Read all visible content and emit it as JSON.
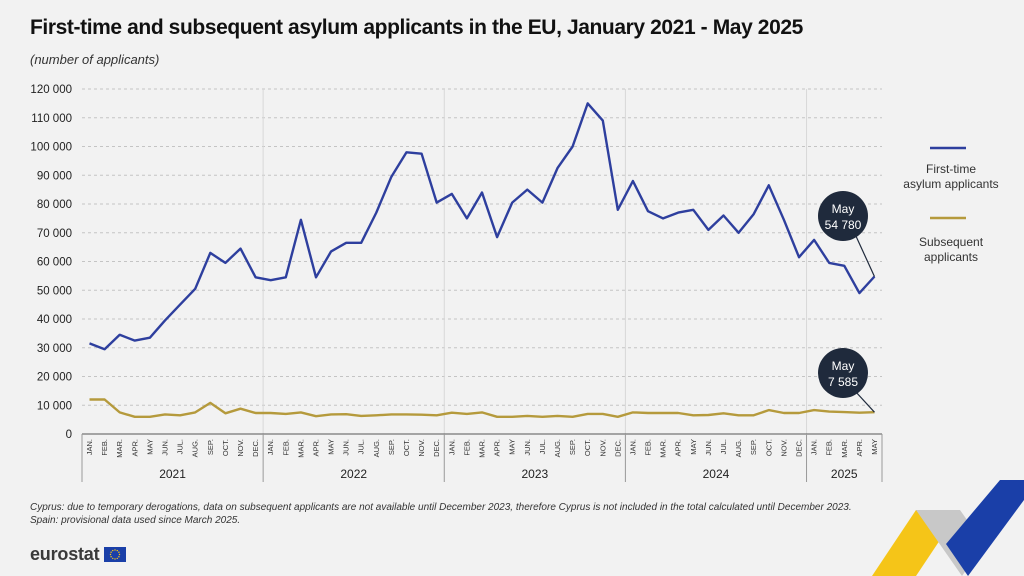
{
  "header": {
    "title": "First-time and subsequent asylum applicants in the EU, January 2021 - May 2025",
    "subtitle": "(number of applicants)"
  },
  "footnotes": [
    "Cyprus: due to temporary derogations, data on subsequent applicants are not available until December 2023, therefore Cyprus is not included in the total calculated until December 2023.",
    "Spain: provisional data used since March 2025."
  ],
  "brand": {
    "name": "eurostat"
  },
  "colors": {
    "first_time": "#2e3f9e",
    "subsequent": "#b59a3c",
    "callout": "#1f2a3c",
    "deco_yellow": "#f5c518",
    "deco_blue": "#1a3fa8",
    "deco_gray": "#c8c8c8"
  },
  "chart_data": {
    "type": "line",
    "title": "First-time and subsequent asylum applicants in the EU, January 2021 - May 2025",
    "ylabel": "(number of applicants)",
    "ylim": [
      0,
      120000
    ],
    "yticks": [
      0,
      10000,
      20000,
      30000,
      40000,
      50000,
      60000,
      70000,
      80000,
      90000,
      100000,
      110000,
      120000
    ],
    "ytick_labels": [
      "0",
      "10 000",
      "20 000",
      "30 000",
      "40 000",
      "50 000",
      "60 000",
      "70 000",
      "80 000",
      "90 000",
      "100 000",
      "110 000",
      "120 000"
    ],
    "month_labels": [
      "JAN.",
      "FEB.",
      "MAR.",
      "APR.",
      "MAY",
      "JUN.",
      "JUL.",
      "AUG.",
      "SEP.",
      "OCT.",
      "NOV.",
      "DEC."
    ],
    "years": [
      {
        "label": "2021",
        "months": 12
      },
      {
        "label": "2022",
        "months": 12
      },
      {
        "label": "2023",
        "months": 12
      },
      {
        "label": "2024",
        "months": 12
      },
      {
        "label": "2025",
        "months": 5
      }
    ],
    "grid": true,
    "legend_position": "right",
    "series": [
      {
        "name": "First-time\nasylum applicants",
        "color": "#2e3f9e",
        "values": [
          31500,
          29500,
          34500,
          32500,
          33500,
          39500,
          45000,
          50500,
          63000,
          59500,
          64500,
          54500,
          53500,
          54500,
          74500,
          54500,
          63500,
          66500,
          66500,
          77000,
          89500,
          98000,
          97500,
          80500,
          83500,
          75000,
          84000,
          68500,
          80500,
          85000,
          80500,
          92500,
          100000,
          115000,
          109000,
          78000,
          88000,
          77500,
          75000,
          77000,
          78000,
          71000,
          76000,
          70000,
          76500,
          86500,
          74500,
          61500,
          67500,
          59500,
          58500,
          49000,
          54780
        ]
      },
      {
        "name": "Subsequent\napplicants",
        "color": "#b59a3c",
        "values": [
          12000,
          12000,
          7500,
          6000,
          6000,
          6800,
          6500,
          7500,
          10800,
          7200,
          8800,
          7300,
          7300,
          7000,
          7500,
          6200,
          6800,
          6900,
          6300,
          6500,
          6800,
          6800,
          6700,
          6500,
          7400,
          7000,
          7500,
          6000,
          6000,
          6300,
          6000,
          6300,
          6000,
          7000,
          7000,
          6000,
          7500,
          7300,
          7300,
          7300,
          6500,
          6600,
          7200,
          6500,
          6500,
          8300,
          7300,
          7300,
          8300,
          7800,
          7600,
          7400,
          7585
        ]
      }
    ],
    "annotations": [
      {
        "series": 0,
        "month": "May",
        "value": "54 780"
      },
      {
        "series": 1,
        "month": "May",
        "value": "7 585"
      }
    ]
  }
}
